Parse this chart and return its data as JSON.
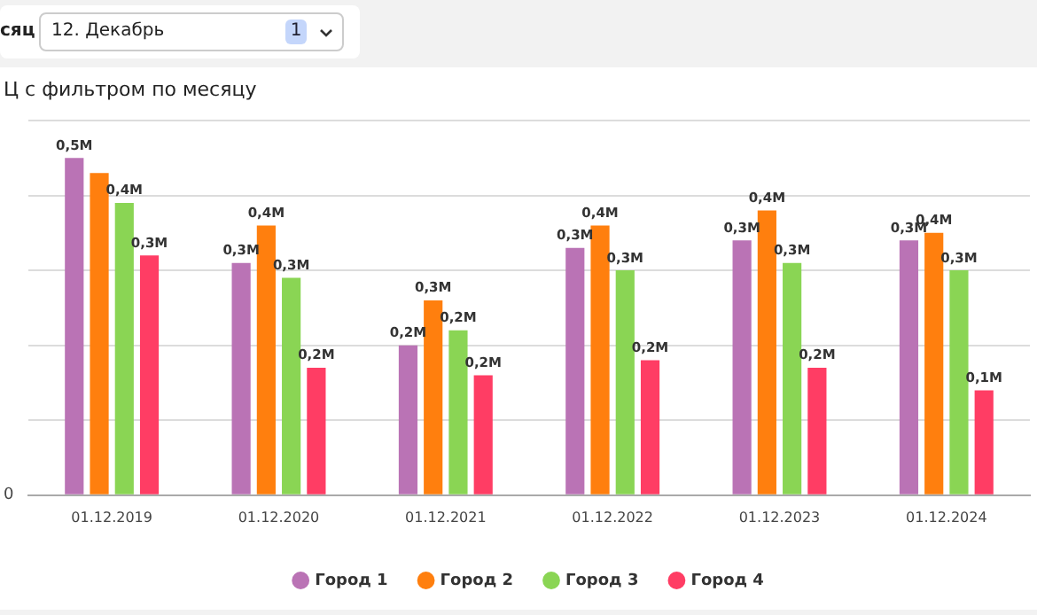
{
  "chart_data": {
    "type": "bar",
    "title": "Ц с фильтром по месяцу",
    "annotations": [
      "сяц",
      "12. Декабрь",
      "1",
      "0"
    ],
    "categories": [
      "01.12.2019",
      "01.12.2020",
      "01.12.2021",
      "01.12.2022",
      "01.12.2023",
      "01.12.2024"
    ],
    "series": [
      {
        "name": "Город 1",
        "color": "#ba73b5",
        "values": [
          0.45,
          0.31,
          0.2,
          0.33,
          0.34,
          0.34
        ],
        "value_labels": [
          "0,5M",
          "0,3M",
          "0,2M",
          "0,3M",
          "0,3M",
          "0,3M"
        ]
      },
      {
        "name": "Город 2",
        "color": "#ff7f0e",
        "values": [
          0.43,
          0.36,
          0.26,
          0.36,
          0.38,
          0.35
        ],
        "value_labels": [
          null,
          "0,4M",
          "0,3M",
          "0,4M",
          "0,4M",
          "0,4M"
        ]
      },
      {
        "name": "Город 3",
        "color": "#8ad554",
        "values": [
          0.39,
          0.29,
          0.22,
          0.3,
          0.31,
          0.3
        ],
        "value_labels": [
          "0,4M",
          "0,3M",
          "0,2M",
          "0,3M",
          "0,3M",
          "0,3M"
        ]
      },
      {
        "name": "Город 4",
        "color": "#ff3d64",
        "values": [
          0.32,
          0.17,
          0.16,
          0.18,
          0.17,
          0.14
        ],
        "value_labels": [
          "0,3M",
          "0,2M",
          "0,2M",
          "0,2M",
          "0,2M",
          "0,1M"
        ]
      }
    ],
    "ylim": [
      0,
      0.5
    ],
    "grid": "y",
    "legend": "bottom"
  }
}
